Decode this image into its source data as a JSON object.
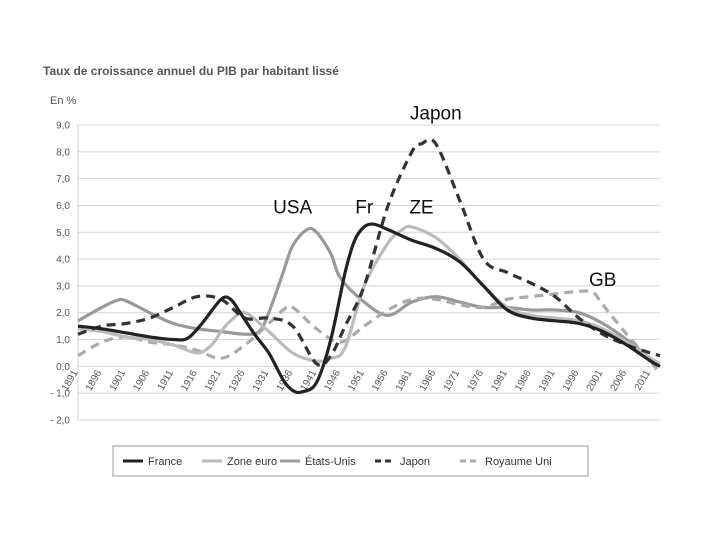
{
  "chart_data": {
    "type": "line",
    "title": "Taux de croissance annuel du PIB par habitant lissé",
    "ylabel": "En %",
    "xlabel": "",
    "ylim": [
      -2.0,
      9.0
    ],
    "xlim": [
      1891,
      2013
    ],
    "y_ticks": [
      "9,0",
      "8,0",
      "7,0",
      "6,0",
      "5,0",
      "4,0",
      "3,0",
      "2,0",
      "1,0",
      "0,0",
      "- 1,0",
      "- 2,0"
    ],
    "y_tick_values": [
      9,
      8,
      7,
      6,
      5,
      4,
      3,
      2,
      1,
      0,
      -1,
      -2
    ],
    "x_ticks": [
      "1891",
      "1896",
      "1901",
      "1906",
      "1911",
      "1916",
      "1921",
      "1926",
      "1931",
      "1936",
      "1941",
      "1946",
      "1951",
      "1956",
      "1961",
      "1966",
      "1971",
      "1976",
      "1981",
      "1986",
      "1991",
      "1996",
      "2001",
      "2006",
      "2011"
    ],
    "x_tick_values": [
      1891,
      1896,
      1901,
      1906,
      1911,
      1916,
      1921,
      1926,
      1931,
      1936,
      1941,
      1946,
      1951,
      1956,
      1961,
      1966,
      1971,
      1976,
      1981,
      1986,
      1991,
      1996,
      2001,
      2006,
      2011
    ],
    "grid": true,
    "legend_position": "bottom",
    "series": [
      {
        "name": "France",
        "color": "#222222",
        "dash": "solid",
        "x": [
          1891,
          1896,
          1901,
          1906,
          1911,
          1914,
          1917,
          1921,
          1923,
          1925,
          1928,
          1931,
          1934,
          1936,
          1938,
          1941,
          1944,
          1947,
          1949,
          1951,
          1953,
          1956,
          1961,
          1966,
          1971,
          1976,
          1981,
          1986,
          1991,
          1996,
          2001,
          2006,
          2011,
          2013
        ],
        "y": [
          1.5,
          1.4,
          1.25,
          1.1,
          1.0,
          1.05,
          1.6,
          2.5,
          2.5,
          2.0,
          1.2,
          0.5,
          -0.5,
          -0.9,
          -0.95,
          -0.6,
          1.0,
          3.5,
          4.7,
          5.2,
          5.3,
          5.1,
          4.7,
          4.4,
          3.9,
          3.0,
          2.1,
          1.8,
          1.7,
          1.6,
          1.3,
          0.8,
          0.2,
          0.0
        ]
      },
      {
        "name": "Zone euro",
        "color": "#bbbbbb",
        "dash": "solid",
        "x": [
          1891,
          1896,
          1901,
          1906,
          1911,
          1916,
          1919,
          1921,
          1923,
          1926,
          1931,
          1936,
          1941,
          1944,
          1947,
          1951,
          1956,
          1959,
          1961,
          1966,
          1971,
          1976,
          1981,
          1986,
          1991,
          1996,
          2001,
          2006,
          2011,
          2013
        ],
        "y": [
          1.4,
          1.3,
          1.1,
          1.0,
          0.8,
          0.5,
          0.8,
          1.3,
          1.7,
          2.0,
          1.3,
          0.5,
          0.2,
          0.3,
          0.7,
          3.0,
          4.6,
          5.1,
          5.2,
          4.8,
          4.0,
          3.0,
          2.2,
          1.9,
          1.8,
          1.7,
          1.4,
          0.9,
          0.3,
          0.1
        ]
      },
      {
        "name": "États-Unis",
        "color": "#999999",
        "dash": "solid",
        "x": [
          1891,
          1896,
          1899,
          1901,
          1906,
          1911,
          1916,
          1921,
          1926,
          1929,
          1931,
          1934,
          1936,
          1939,
          1941,
          1944,
          1946,
          1951,
          1956,
          1961,
          1966,
          1971,
          1976,
          1981,
          1986,
          1991,
          1996,
          2001,
          2006,
          2011,
          2013
        ],
        "y": [
          1.7,
          2.2,
          2.45,
          2.45,
          2.0,
          1.6,
          1.4,
          1.3,
          1.2,
          1.3,
          2.0,
          3.5,
          4.5,
          5.1,
          5.0,
          4.2,
          3.3,
          2.4,
          1.9,
          2.4,
          2.6,
          2.4,
          2.2,
          2.2,
          2.1,
          2.1,
          2.0,
          1.6,
          1.0,
          0.3,
          0.1
        ]
      },
      {
        "name": "Japon",
        "color": "#333333",
        "dash": "9 6",
        "x": [
          1891,
          1896,
          1901,
          1906,
          1911,
          1916,
          1921,
          1926,
          1931,
          1936,
          1941,
          1944,
          1947,
          1951,
          1956,
          1961,
          1963,
          1966,
          1971,
          1976,
          1981,
          1986,
          1991,
          1996,
          2001,
          2006,
          2011,
          2013
        ],
        "y": [
          1.2,
          1.5,
          1.6,
          1.8,
          2.2,
          2.6,
          2.5,
          1.8,
          1.8,
          1.5,
          0.1,
          0.4,
          1.5,
          3.0,
          6.0,
          8.0,
          8.3,
          8.3,
          6.2,
          4.0,
          3.5,
          3.1,
          2.6,
          1.8,
          1.2,
          0.8,
          0.5,
          0.4
        ]
      },
      {
        "name": "Royaume Uni",
        "color": "#aaaaaa",
        "dash": "9 6",
        "x": [
          1891,
          1896,
          1901,
          1906,
          1911,
          1916,
          1921,
          1926,
          1931,
          1934,
          1936,
          1941,
          1946,
          1951,
          1956,
          1961,
          1966,
          1971,
          1976,
          1981,
          1986,
          1991,
          1996,
          1999,
          2001,
          2006,
          2011,
          2013
        ],
        "y": [
          0.4,
          0.9,
          1.1,
          0.9,
          0.8,
          0.6,
          0.3,
          0.8,
          1.6,
          2.1,
          2.2,
          1.4,
          0.9,
          1.5,
          2.1,
          2.5,
          2.5,
          2.3,
          2.2,
          2.5,
          2.6,
          2.7,
          2.8,
          2.75,
          2.3,
          1.2,
          0.2,
          -0.3
        ]
      }
    ],
    "annotations": [
      {
        "text": "Japon",
        "x": 1966,
        "y": 9.2
      },
      {
        "text": "USA",
        "x": 1936,
        "y": 5.7
      },
      {
        "text": "Fr",
        "x": 1951,
        "y": 5.7
      },
      {
        "text": "ZE",
        "x": 1963,
        "y": 5.7
      },
      {
        "text": "GB",
        "x": 2001,
        "y": 3.0
      }
    ]
  }
}
